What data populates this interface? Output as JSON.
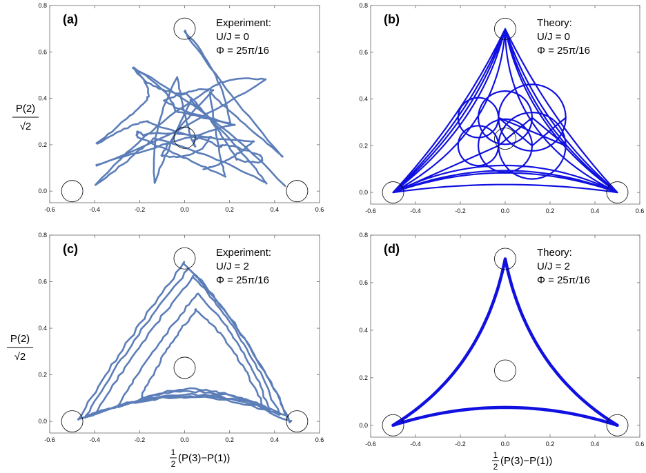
{
  "chart_data": [
    {
      "type": "line",
      "panel": "(a)",
      "annotation": [
        "Experiment:",
        "U/J = 0",
        "Φ = 25π/16"
      ],
      "color": "#5b7db8",
      "kind": "experiment-u0",
      "xlim": [
        -0.6,
        0.6
      ],
      "ylim": [
        -0.05,
        0.8
      ],
      "xticks": [
        "-0.6",
        "-0.4",
        "-0.2",
        "0.0",
        "0.2",
        "0.4",
        "0.6"
      ],
      "yticks": [
        "0.0",
        "0.2",
        "0.4",
        "0.6",
        "0.8"
      ],
      "markers": [
        {
          "x": -0.5,
          "y": 0.0
        },
        {
          "x": 0.5,
          "y": 0.0
        },
        {
          "x": 0.0,
          "y": 0.7
        },
        {
          "x": 0.0,
          "y": 0.23
        }
      ]
    },
    {
      "type": "line",
      "panel": "(b)",
      "annotation": [
        "Theory:",
        "U/J = 0",
        "Φ = 25π/16"
      ],
      "color": "#1010e0",
      "kind": "theory-u0",
      "xlim": [
        -0.6,
        0.6
      ],
      "ylim": [
        -0.05,
        0.8
      ],
      "xticks": [
        "-0.6",
        "-0.4",
        "-0.2",
        "0.0",
        "0.2",
        "0.4",
        "0.6"
      ],
      "yticks": [
        "0.0",
        "0.2",
        "0.4",
        "0.6",
        "0.8"
      ],
      "markers": [
        {
          "x": -0.5,
          "y": 0.0
        },
        {
          "x": 0.5,
          "y": 0.0
        },
        {
          "x": 0.0,
          "y": 0.7
        },
        {
          "x": 0.0,
          "y": 0.23
        }
      ]
    },
    {
      "type": "line",
      "panel": "(c)",
      "annotation": [
        "Experiment:",
        "U/J = 2",
        "Φ = 25π/16"
      ],
      "color": "#5b7db8",
      "kind": "experiment-u2",
      "xlim": [
        -0.6,
        0.6
      ],
      "ylim": [
        -0.05,
        0.8
      ],
      "xticks": [
        "-0.6",
        "-0.4",
        "-0.2",
        "0.0",
        "0.2",
        "0.4",
        "0.6"
      ],
      "yticks": [
        "0.0",
        "0.2",
        "0.4",
        "0.6",
        "0.8"
      ],
      "markers": [
        {
          "x": -0.5,
          "y": 0.0
        },
        {
          "x": 0.5,
          "y": 0.0
        },
        {
          "x": 0.0,
          "y": 0.7
        },
        {
          "x": 0.0,
          "y": 0.23
        }
      ]
    },
    {
      "type": "line",
      "panel": "(d)",
      "annotation": [
        "Theory:",
        "U/J = 2",
        "Φ = 25π/16"
      ],
      "color": "#1010e0",
      "kind": "theory-u2",
      "xlim": [
        -0.6,
        0.6
      ],
      "ylim": [
        -0.05,
        0.8
      ],
      "xticks": [
        "-0.6",
        "-0.4",
        "-0.2",
        "0.0",
        "0.2",
        "0.4",
        "0.6"
      ],
      "yticks": [
        "0.0",
        "0.2",
        "0.4",
        "0.6",
        "0.8"
      ],
      "markers": [
        {
          "x": -0.5,
          "y": 0.0
        },
        {
          "x": 0.5,
          "y": 0.0
        },
        {
          "x": 0.0,
          "y": 0.7
        },
        {
          "x": 0.0,
          "y": 0.23
        }
      ]
    }
  ],
  "ylabel": {
    "numerator": "P(2)",
    "denominator": "√2"
  },
  "xlabel": {
    "prefix_num": "1",
    "prefix_den": "2",
    "text": "(P(3)−P(1))"
  }
}
